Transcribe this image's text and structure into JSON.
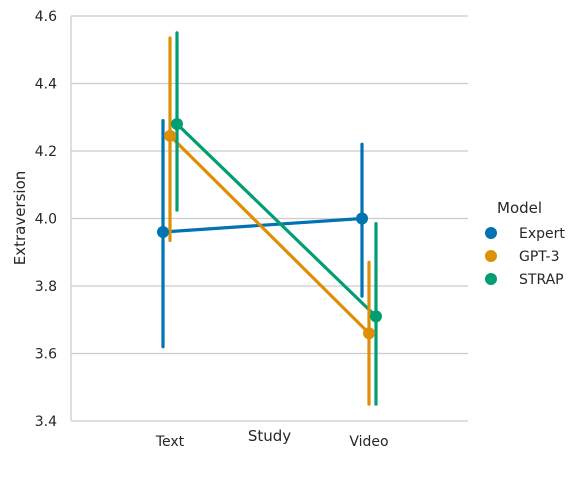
{
  "chart_data": {
    "type": "point",
    "categories": [
      "Text",
      "Video"
    ],
    "xlabel": "Study",
    "ylabel": "Extraversion",
    "ylim": [
      3.4,
      4.6
    ],
    "yticks": [
      "3.4",
      "3.6",
      "3.8",
      "4.0",
      "4.2",
      "4.4",
      "4.6"
    ],
    "grid": "horizontal",
    "legend": {
      "title": "Model",
      "placement": "right"
    },
    "series": [
      {
        "name": "Expert",
        "color": "#0173b2",
        "values": [
          3.96,
          4.0
        ],
        "ci_low": [
          3.62,
          3.77
        ],
        "ci_high": [
          4.29,
          4.22
        ]
      },
      {
        "name": "GPT-3",
        "color": "#de8f05",
        "values": [
          4.245,
          3.66
        ],
        "ci_low": [
          3.935,
          3.45
        ],
        "ci_high": [
          4.535,
          3.87
        ]
      },
      {
        "name": "STRAP",
        "color": "#029e73",
        "values": [
          4.28,
          3.71
        ],
        "ci_low": [
          4.025,
          3.45
        ],
        "ci_high": [
          4.55,
          3.985
        ]
      }
    ]
  }
}
